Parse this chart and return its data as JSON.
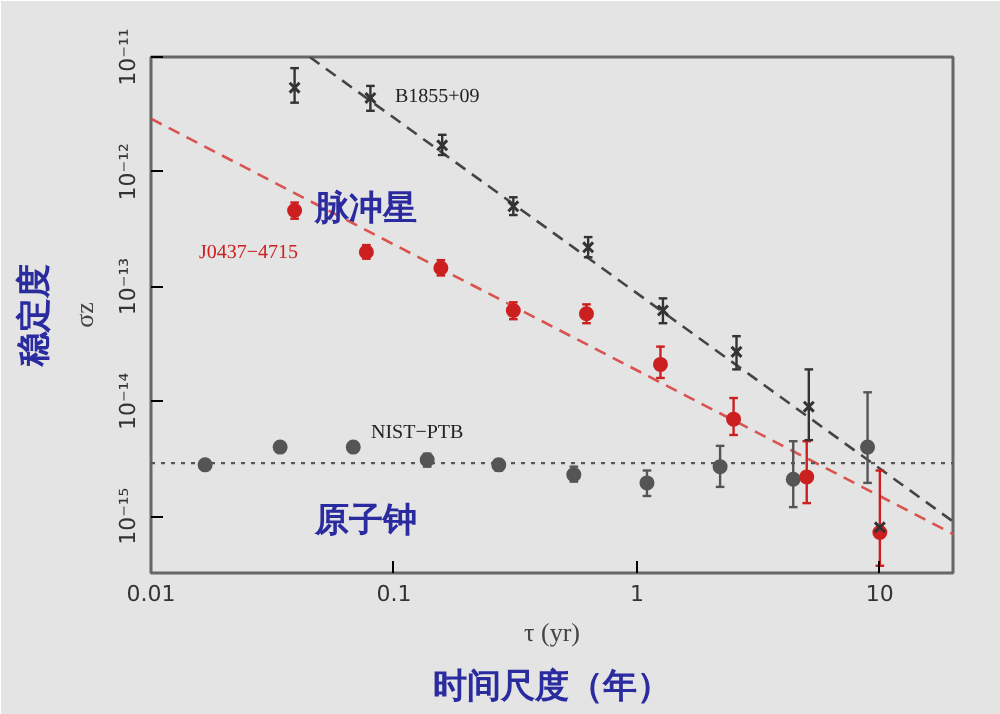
{
  "chart_data": {
    "type": "scatter",
    "xlabel": "τ (yr)",
    "ylabel": "σz",
    "log": "xy",
    "xlim": [
      0.01,
      20
    ],
    "xticks": [
      0.01,
      0.1,
      1,
      10
    ],
    "ylim": [
      3.2e-16,
      1e-11
    ],
    "yticks": [
      {
        "value": 1e-11,
        "label": "10⁻¹¹"
      },
      {
        "value": 1e-12,
        "label": "10⁻¹²"
      },
      {
        "value": 1e-13,
        "label": "10⁻¹³"
      },
      {
        "value": 1e-14,
        "label": "10⁻¹⁴"
      },
      {
        "value": 1e-15,
        "label": "10⁻¹⁵"
      }
    ],
    "series": [
      {
        "marker": "cross",
        "color": "#333333",
        "x": [
          0.039,
          0.08,
          0.158,
          0.31,
          0.63,
          1.28,
          2.57,
          5.1,
          10
        ],
        "values": [
          5.4e-12,
          4.4e-12,
          1.7e-12,
          5e-13,
          2.2e-13,
          6.2e-14,
          2.7e-14,
          9e-15,
          8e-16
        ],
        "errors": [
          [
            4e-12,
            8e-12
          ],
          [
            3.4e-12,
            5.6e-12
          ],
          [
            1.4e-12,
            2.1e-12
          ],
          [
            4.2e-13,
            6e-13
          ],
          [
            1.8e-13,
            2.7e-13
          ],
          [
            4.8e-14,
            7.9e-14
          ],
          [
            1.9e-14,
            3.7e-14
          ],
          [
            4.6e-15,
            1.9e-14
          ],
          null
        ]
      },
      {
        "marker": "circle",
        "color": "#cc1f1f",
        "x": [
          0.039,
          0.077,
          0.156,
          0.31,
          0.62,
          1.25,
          2.5,
          5.0,
          10
        ],
        "values": [
          4.6e-13,
          2e-13,
          1.45e-13,
          6.2e-14,
          5.8e-14,
          2.1e-14,
          7e-15,
          2.2e-15,
          7.2e-16
        ],
        "errors": [
          [
            3.9e-13,
            5.4e-13
          ],
          [
            1.75e-13,
            2.3e-13
          ],
          [
            1.25e-13,
            1.7e-13
          ],
          [
            5.2e-14,
            7.3e-14
          ],
          [
            4.8e-14,
            7e-14
          ],
          [
            1.6e-14,
            3e-14
          ],
          [
            5.1e-15,
            1.07e-14
          ],
          [
            1.3e-15,
            4.5e-15
          ],
          [
            3.7e-16,
            2.5e-15
          ]
        ]
      },
      {
        "marker": "circle",
        "color": "#555555",
        "x": [
          0.0167,
          0.034,
          0.068,
          0.137,
          0.27,
          0.55,
          1.1,
          2.2,
          4.4,
          8.9
        ],
        "values": [
          2.8e-15,
          4e-15,
          4e-15,
          3.1e-15,
          2.8e-15,
          2.3e-15,
          1.95e-15,
          2.7e-15,
          2.1e-15,
          4e-15
        ],
        "errors": [
          null,
          null,
          null,
          [
            2.7e-15,
            3.5e-15
          ],
          [
            2.5e-15,
            3.1e-15
          ],
          [
            2e-15,
            2.7e-15
          ],
          [
            1.5e-15,
            2.5e-15
          ],
          [
            1.8e-15,
            4.1e-15
          ],
          [
            1.2e-15,
            4.5e-15
          ],
          [
            1.95e-15,
            1.2e-14
          ]
        ]
      },
      {
        "type": "line",
        "line_style": "dashed",
        "color": "#444444",
        "x": [
          0.045,
          20
        ],
        "values": [
          1e-11,
          9e-16
        ]
      },
      {
        "type": "line",
        "line_style": "dashed",
        "color": "#d9534f",
        "x": [
          0.01,
          20
        ],
        "values": [
          2.9e-12,
          7e-16
        ]
      }
    ],
    "ref_lines": [
      {
        "axis": "y",
        "value": 2.9e-15,
        "line_style": "dotted",
        "color": "#555555"
      }
    ],
    "annotations": [
      "稳定度",
      "时间尺度（年）",
      "B1855+09",
      "J0437−4715",
      "NIST−PTB",
      "脉冲星",
      "原子钟"
    ]
  }
}
